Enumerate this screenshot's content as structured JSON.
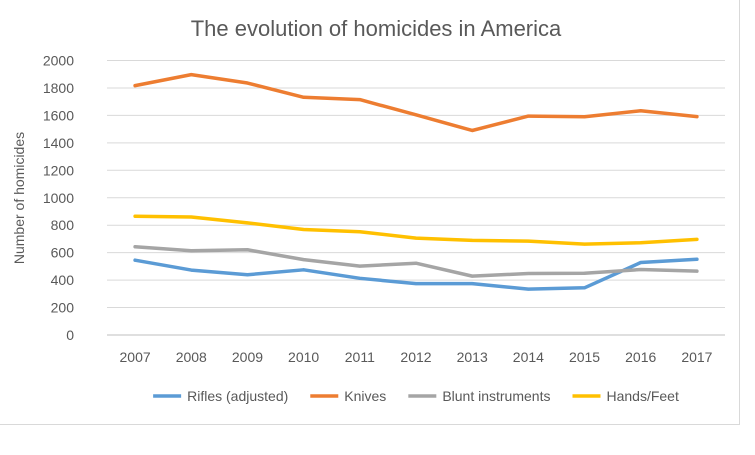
{
  "chart_data": {
    "type": "line",
    "title": "The evolution of homicides in America",
    "xlabel": "",
    "ylabel": "Number of homicides",
    "ylim": [
      0,
      2000
    ],
    "yticks": [
      0,
      200,
      400,
      600,
      800,
      1000,
      1200,
      1400,
      1600,
      1800,
      2000
    ],
    "grid": true,
    "legend_position": "bottom",
    "categories": [
      "2007",
      "2008",
      "2009",
      "2010",
      "2011",
      "2012",
      "2013",
      "2014",
      "2015",
      "2016",
      "2017"
    ],
    "series": [
      {
        "name": "Rifles (adjusted)",
        "color": "#5b9bd5",
        "values": [
          545,
          473,
          439,
          475,
          413,
          374,
          374,
          334,
          344,
          528,
          552
        ]
      },
      {
        "name": "Knives",
        "color": "#ed7d31",
        "values": [
          1817,
          1897,
          1836,
          1732,
          1715,
          1604,
          1490,
          1595,
          1590,
          1634,
          1591
        ]
      },
      {
        "name": "Blunt instruments",
        "color": "#a5a5a5",
        "values": [
          643,
          614,
          621,
          549,
          502,
          523,
          429,
          448,
          450,
          477,
          465
        ]
      },
      {
        "name": "Hands/Feet",
        "color": "#ffc000",
        "values": [
          865,
          860,
          817,
          769,
          752,
          706,
          689,
          684,
          662,
          672,
          697
        ]
      }
    ]
  }
}
